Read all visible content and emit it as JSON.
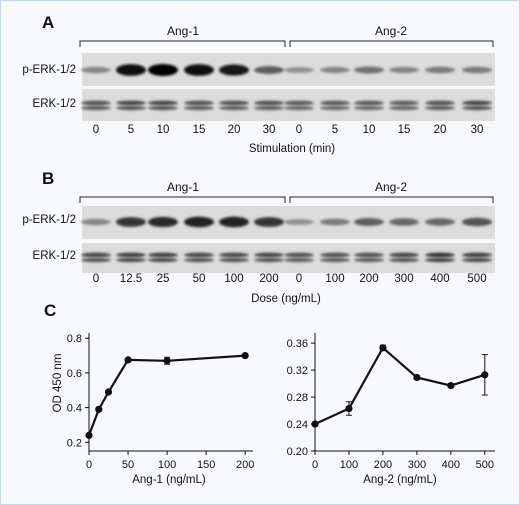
{
  "panels": {
    "A": {
      "letter": "A",
      "groups": [
        "Ang-1",
        "Ang-2"
      ],
      "rows": [
        "p-ERK-1/2",
        "ERK-1/2"
      ],
      "lanes": [
        "0",
        "5",
        "10",
        "15",
        "20",
        "30",
        "0",
        "5",
        "10",
        "15",
        "20",
        "30"
      ],
      "xlabel": "Stimulation (min)",
      "phospho_intensity": [
        0.35,
        0.95,
        1.0,
        0.95,
        0.9,
        0.55,
        0.3,
        0.35,
        0.45,
        0.35,
        0.4,
        0.4
      ],
      "total_intensity": [
        0.65,
        0.7,
        0.7,
        0.65,
        0.65,
        0.65,
        0.6,
        0.6,
        0.6,
        0.6,
        0.65,
        0.7
      ]
    },
    "B": {
      "letter": "B",
      "groups": [
        "Ang-1",
        "Ang-2"
      ],
      "rows": [
        "p-ERK-1/2",
        "ERK-1/2"
      ],
      "lanes": [
        "0",
        "12.5",
        "25",
        "50",
        "100",
        "200",
        "0",
        "100",
        "200",
        "300",
        "400",
        "500"
      ],
      "xlabel": "Dose (ng/mL)",
      "phospho_intensity": [
        0.35,
        0.75,
        0.8,
        0.85,
        0.85,
        0.75,
        0.3,
        0.4,
        0.55,
        0.5,
        0.5,
        0.6
      ],
      "total_intensity": [
        0.7,
        0.75,
        0.75,
        0.7,
        0.7,
        0.7,
        0.65,
        0.65,
        0.65,
        0.7,
        0.8,
        0.75
      ]
    },
    "C": {
      "letter": "C"
    }
  },
  "chart_data": [
    {
      "type": "line",
      "xlabel": "Ang-1 (ng/mL)",
      "ylabel": "OD 450 nm",
      "x": [
        0,
        12.5,
        25,
        50,
        100,
        200
      ],
      "values": [
        0.24,
        0.39,
        0.49,
        0.675,
        0.67,
        0.7
      ],
      "errors": [
        0.005,
        0.005,
        0.005,
        0.005,
        0.02,
        0.005
      ],
      "xlim": [
        0,
        210
      ],
      "ylim": [
        0.15,
        0.83
      ],
      "xticks": [
        "0",
        "50",
        "100",
        "150",
        "200"
      ],
      "xtick_values": [
        0,
        50,
        100,
        150,
        200
      ],
      "yticks": [
        "0.2",
        "0.4",
        "0.6",
        "0.8"
      ],
      "ytick_values": [
        0.2,
        0.4,
        0.6,
        0.8
      ]
    },
    {
      "type": "line",
      "xlabel": "Ang-2 (ng/mL)",
      "ylabel": "",
      "x": [
        0,
        100,
        200,
        300,
        400,
        500
      ],
      "values": [
        0.24,
        0.263,
        0.353,
        0.309,
        0.297,
        0.313
      ],
      "errors": [
        0.002,
        0.01,
        0.004,
        0.003,
        0.003,
        0.03
      ],
      "xlim": [
        0,
        530
      ],
      "ylim": [
        0.2,
        0.375
      ],
      "xticks": [
        "0",
        "100",
        "200",
        "300",
        "400",
        "500"
      ],
      "xtick_values": [
        0,
        100,
        200,
        300,
        400,
        500
      ],
      "yticks": [
        "0.20",
        "0.24",
        "0.28",
        "0.32",
        "0.36"
      ],
      "ytick_values": [
        0.2,
        0.24,
        0.28,
        0.32,
        0.36
      ]
    }
  ]
}
